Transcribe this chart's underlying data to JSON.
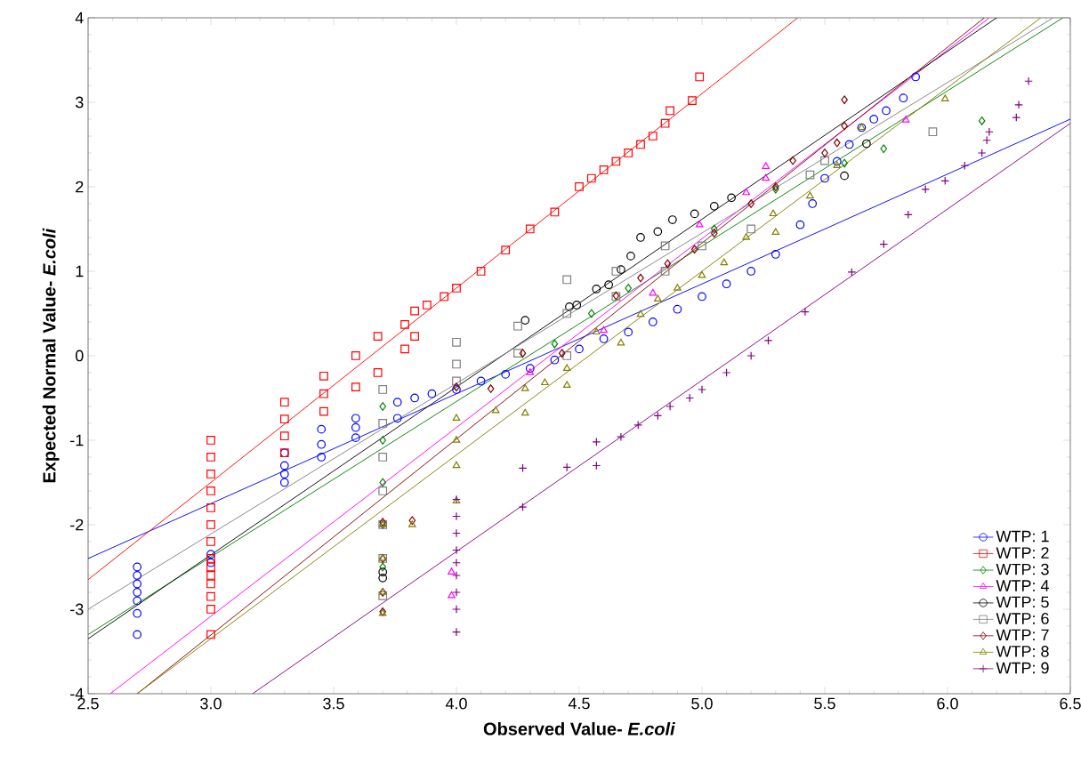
{
  "chart_data": {
    "type": "scatter",
    "xlabel": "Observed Value- *E.coli*",
    "ylabel": "Expected Normal Value- *E.coli*",
    "xlim": [
      2.5,
      6.5
    ],
    "ylim": [
      -4,
      4
    ],
    "xticks": [
      2.5,
      {
        "value": 3,
        "label": "3.0"
      },
      3.5,
      {
        "value": 4,
        "label": "4.0"
      },
      4.5,
      {
        "value": 5,
        "label": "5.0"
      },
      5.5,
      {
        "value": 6,
        "label": "6.0"
      },
      6.5
    ],
    "yticks": [
      -4,
      -3,
      -2,
      -1,
      0,
      1,
      2,
      3,
      4
    ],
    "grid": false,
    "legend": "bottom right",
    "series": [
      {
        "name": "WTP: 1",
        "marker": "circle",
        "color": "#0000ff",
        "x": [
          2.7,
          2.7,
          2.7,
          2.7,
          2.7,
          2.7,
          2.7,
          3.0,
          3.0,
          3.3,
          3.3,
          3.3,
          3.3,
          3.45,
          3.45,
          3.45,
          3.59,
          3.59,
          3.59,
          3.76,
          3.76,
          3.83,
          3.9,
          4.0,
          4.1,
          4.2,
          4.3,
          4.4,
          4.5,
          4.6,
          4.7,
          4.8,
          4.9,
          5.0,
          5.1,
          5.2,
          5.3,
          5.4,
          5.45,
          5.5,
          5.55,
          5.6,
          5.65,
          5.7,
          5.75,
          5.82,
          5.87
        ],
        "values": [
          -3.3,
          -3.05,
          -2.9,
          -2.8,
          -2.7,
          -2.6,
          -2.5,
          -2.45,
          -2.35,
          -1.5,
          -1.4,
          -1.3,
          -1.15,
          -1.2,
          -1.05,
          -0.87,
          -0.97,
          -0.85,
          -0.74,
          -0.74,
          -0.55,
          -0.5,
          -0.45,
          -0.4,
          -0.3,
          -0.22,
          -0.15,
          -0.05,
          0.08,
          0.2,
          0.28,
          0.4,
          0.55,
          0.7,
          0.85,
          1.0,
          1.2,
          1.55,
          1.8,
          2.1,
          2.3,
          2.5,
          2.7,
          2.8,
          2.9,
          3.05,
          3.3
        ]
      },
      {
        "name": "WTP: 2",
        "marker": "square",
        "color": "#ff0000",
        "x": [
          3.0,
          3.0,
          3.0,
          3.0,
          3.0,
          3.0,
          3.0,
          3.0,
          3.0,
          3.0,
          3.0,
          3.0,
          3.0,
          3.0,
          3.3,
          3.3,
          3.3,
          3.3,
          3.46,
          3.46,
          3.46,
          3.59,
          3.59,
          3.68,
          3.68,
          3.79,
          3.79,
          3.83,
          3.83,
          3.88,
          3.95,
          4.0,
          4.1,
          4.2,
          4.3,
          4.4,
          4.5,
          4.55,
          4.6,
          4.65,
          4.7,
          4.75,
          4.8,
          4.85,
          4.87,
          4.96,
          4.99
        ],
        "values": [
          -3.3,
          -3.0,
          -2.85,
          -2.7,
          -2.6,
          -2.5,
          -2.4,
          -2.2,
          -2.0,
          -1.8,
          -1.6,
          -1.4,
          -1.2,
          -1.0,
          -1.15,
          -0.95,
          -0.75,
          -0.55,
          -0.66,
          -0.45,
          -0.24,
          -0.37,
          0.0,
          -0.2,
          0.23,
          0.08,
          0.37,
          0.23,
          0.53,
          0.6,
          0.7,
          0.8,
          1.0,
          1.25,
          1.5,
          1.7,
          2.0,
          2.1,
          2.2,
          2.3,
          2.4,
          2.5,
          2.6,
          2.75,
          2.9,
          3.02,
          3.3
        ]
      },
      {
        "name": "WTP: 3",
        "marker": "diamond",
        "color": "#008000",
        "x": [
          3.7,
          3.7,
          3.7,
          3.7,
          3.7,
          4.4,
          4.55,
          4.7,
          5.05,
          5.3,
          5.58,
          5.74,
          6.14
        ],
        "values": [
          -0.6,
          -1.0,
          -1.5,
          -2.0,
          -2.5,
          0.14,
          0.5,
          0.8,
          1.5,
          1.97,
          2.28,
          2.45,
          2.78
        ]
      },
      {
        "name": "WTP: 4",
        "marker": "triangle",
        "color": "#ff00ff",
        "x": [
          3.98,
          3.98,
          4.3,
          4.6,
          4.8,
          4.99,
          5.18,
          5.26,
          5.26,
          5.83
        ],
        "values": [
          -2.56,
          -2.84,
          -0.2,
          0.3,
          0.74,
          1.55,
          1.93,
          2.1,
          2.24,
          2.79
        ]
      },
      {
        "name": "WTP: 5",
        "marker": "circle",
        "color": "#000000",
        "x": [
          3.7,
          3.7,
          4.28,
          4.46,
          4.49,
          4.57,
          4.62,
          4.67,
          4.71,
          4.75,
          4.82,
          4.88,
          4.97,
          5.05,
          5.12,
          5.58,
          5.67
        ],
        "values": [
          -2.56,
          -2.63,
          0.42,
          0.58,
          0.6,
          0.79,
          0.84,
          1.02,
          1.18,
          1.4,
          1.47,
          1.61,
          1.68,
          1.77,
          1.87,
          2.13,
          2.51
        ]
      },
      {
        "name": "WTP: 6",
        "marker": "square",
        "color": "#808080",
        "x": [
          3.7,
          3.7,
          3.7,
          3.7,
          3.7,
          3.7,
          3.7,
          4.0,
          4.0,
          4.0,
          4.25,
          4.25,
          4.45,
          4.45,
          4.45,
          4.65,
          4.65,
          4.85,
          4.85,
          5.0,
          5.2,
          5.44,
          5.5,
          5.94
        ],
        "values": [
          -0.4,
          -0.8,
          -1.2,
          -1.6,
          -2.0,
          -2.4,
          -2.84,
          0.16,
          -0.1,
          -0.3,
          0.03,
          0.35,
          0.0,
          0.5,
          0.9,
          0.7,
          1.0,
          1.0,
          1.3,
          1.3,
          1.5,
          2.14,
          2.31,
          2.65
        ]
      },
      {
        "name": "WTP: 7",
        "marker": "diamond",
        "color": "#800000",
        "x": [
          3.7,
          3.7,
          3.7,
          3.7,
          3.82,
          4.0,
          4.14,
          4.27,
          4.43,
          4.65,
          4.75,
          4.86,
          4.97,
          5.05,
          5.2,
          5.3,
          5.37,
          5.5,
          5.55,
          5.58,
          5.58
        ],
        "values": [
          -1.97,
          -2.4,
          -2.8,
          -3.03,
          -1.95,
          -0.37,
          -0.39,
          0.03,
          0.03,
          0.71,
          0.92,
          1.09,
          1.26,
          1.45,
          1.8,
          2.0,
          2.31,
          2.4,
          2.52,
          2.72,
          3.03
        ]
      },
      {
        "name": "WTP: 8",
        "marker": "triangle",
        "color": "#808000",
        "x": [
          3.7,
          3.7,
          3.7,
          3.7,
          3.82,
          4.0,
          4.0,
          4.0,
          4.0,
          4.16,
          4.28,
          4.28,
          4.36,
          4.45,
          4.45,
          4.57,
          4.67,
          4.75,
          4.82,
          4.9,
          5.0,
          5.09,
          5.18,
          5.29,
          5.3,
          5.44,
          5.55,
          5.65,
          5.99
        ],
        "values": [
          -2.0,
          -2.4,
          -2.8,
          -3.05,
          -2.0,
          -0.74,
          -1.0,
          -1.3,
          -1.72,
          -0.65,
          -0.39,
          -0.68,
          -0.32,
          -0.15,
          -0.35,
          0.28,
          0.15,
          0.49,
          0.67,
          0.8,
          0.95,
          1.1,
          1.4,
          1.68,
          1.46,
          1.89,
          2.25,
          2.7,
          3.04
        ]
      },
      {
        "name": "WTP: 9",
        "marker": "cross",
        "color": "#800080",
        "x": [
          4.0,
          4.0,
          4.0,
          4.0,
          4.0,
          4.0,
          4.0,
          4.0,
          4.0,
          4.27,
          4.27,
          4.45,
          4.57,
          4.57,
          4.67,
          4.74,
          4.82,
          4.87,
          4.95,
          5.0,
          5.1,
          5.2,
          5.27,
          5.42,
          5.61,
          5.74,
          5.84,
          5.91,
          5.99,
          6.07,
          6.14,
          6.16,
          6.17,
          6.28,
          6.29,
          6.33
        ],
        "values": [
          -1.7,
          -1.9,
          -2.1,
          -2.3,
          -2.45,
          -2.6,
          -2.8,
          -3.0,
          -3.27,
          -1.33,
          -1.79,
          -1.32,
          -1.02,
          -1.3,
          -0.96,
          -0.82,
          -0.71,
          -0.6,
          -0.5,
          -0.4,
          -0.2,
          0.0,
          0.18,
          0.52,
          0.99,
          1.32,
          1.67,
          1.97,
          2.07,
          2.25,
          2.4,
          2.55,
          2.65,
          2.82,
          2.97,
          3.25
        ]
      },
      {
        "type": "line",
        "marker": "none",
        "color": "#0000ff",
        "x": [
          2.5,
          6.5
        ],
        "values": [
          -2.4,
          2.8
        ]
      },
      {
        "type": "line",
        "marker": "none",
        "color": "#ff0000",
        "x": [
          2.5,
          5.39
        ],
        "values": [
          -2.65,
          4.0
        ]
      },
      {
        "type": "line",
        "marker": "none",
        "color": "#008000",
        "x": [
          2.5,
          6.47
        ],
        "values": [
          -3.3,
          4.0
        ]
      },
      {
        "type": "line",
        "marker": "none",
        "color": "#ff00ff",
        "x": [
          2.59,
          6.17
        ],
        "values": [
          -4.0,
          4.0
        ]
      },
      {
        "type": "line",
        "marker": "none",
        "color": "#000000",
        "x": [
          2.5,
          6.2
        ],
        "values": [
          -3.35,
          4.0
        ]
      },
      {
        "type": "line",
        "marker": "none",
        "color": "#808080",
        "x": [
          2.5,
          6.43
        ],
        "values": [
          -3.0,
          4.0
        ]
      },
      {
        "type": "line",
        "marker": "none",
        "color": "#800000",
        "x": [
          2.7,
          6.15
        ],
        "values": [
          -4.0,
          4.0
        ]
      },
      {
        "type": "line",
        "marker": "none",
        "color": "#808000",
        "x": [
          2.7,
          6.38
        ],
        "values": [
          -4.0,
          4.0
        ]
      },
      {
        "type": "line",
        "marker": "none",
        "color": "#800080",
        "x": [
          3.17,
          6.5
        ],
        "values": [
          -4.0,
          2.75
        ]
      }
    ]
  }
}
